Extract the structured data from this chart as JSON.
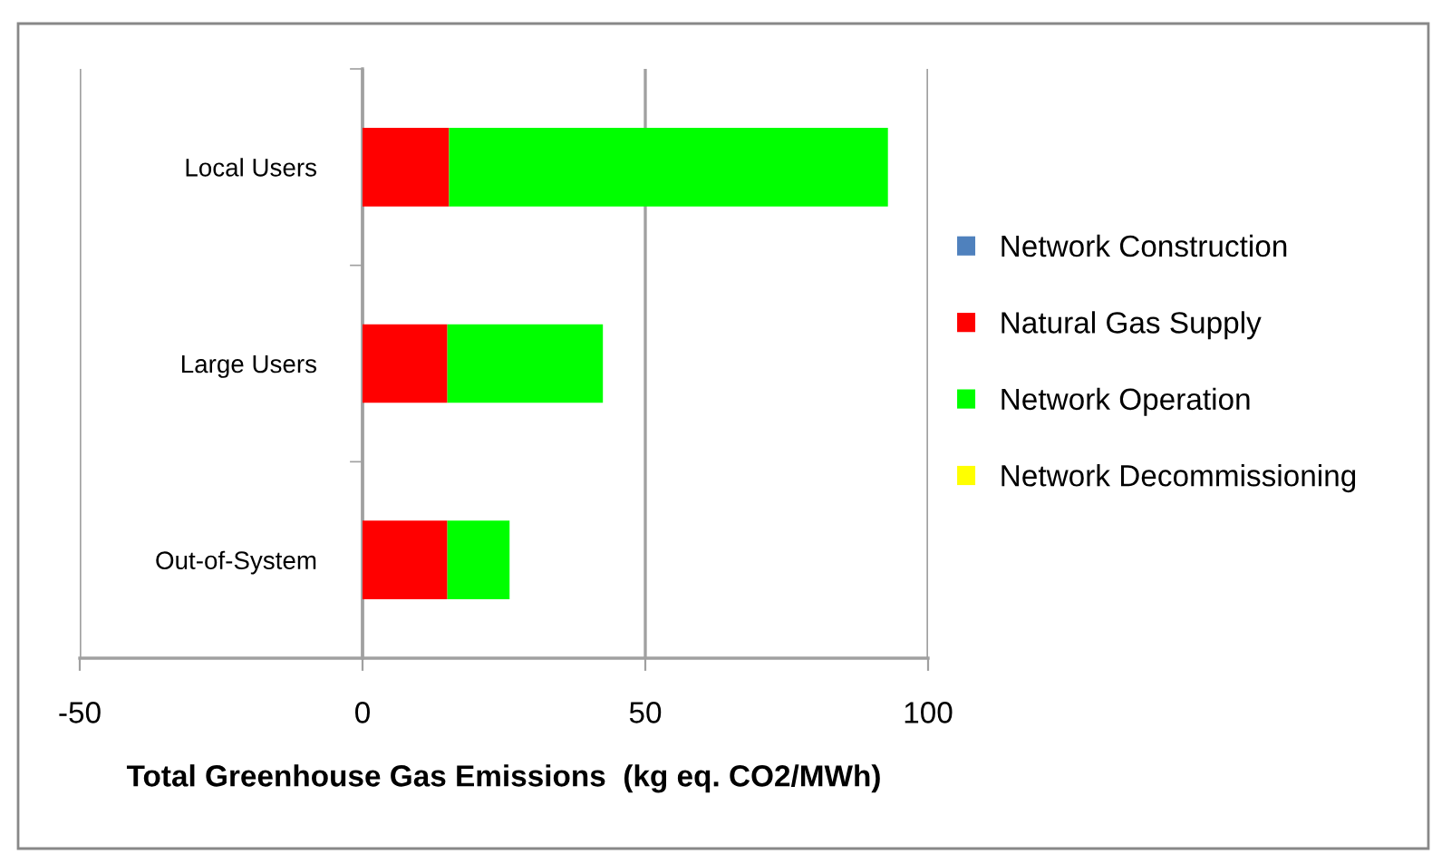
{
  "chart_data": {
    "type": "bar",
    "orientation": "horizontal",
    "stacked": true,
    "categories": [
      "Local Users",
      "Large Users",
      "Out-of-System"
    ],
    "series": [
      {
        "name": "Network Construction",
        "color": "#4f81bd",
        "values": [
          0,
          0,
          0
        ]
      },
      {
        "name": "Natural Gas Supply",
        "color": "#ff0000",
        "values": [
          15.3,
          15.0,
          15.0
        ]
      },
      {
        "name": "Network Operation",
        "color": "#00ff00",
        "values": [
          77.6,
          27.5,
          11.0
        ]
      },
      {
        "name": "Network Decommissioning",
        "color": "#ffff00",
        "values": [
          0,
          0,
          0
        ]
      }
    ],
    "xlabel": "Total Greenhouse Gas Emissions  (kg eq. CO2/MWh)",
    "xlim": [
      -50,
      100
    ],
    "xticks": [
      -50,
      0,
      50,
      100
    ],
    "grid": "x",
    "legend": "right"
  }
}
